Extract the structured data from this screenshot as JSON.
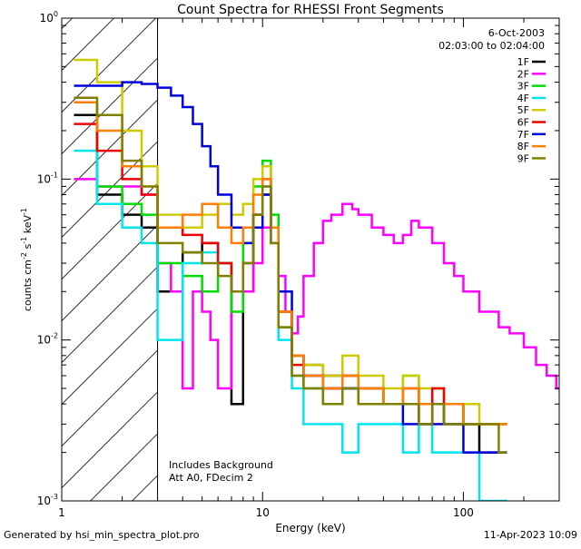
{
  "chart_data": {
    "type": "line",
    "title": "Count Spectra for RHESSI Front Segments",
    "date": "6-Oct-2003",
    "time_range": "02:03:00 to 02:04:00",
    "xlabel": "Energy (keV)",
    "ylabel_parts": [
      "counts cm",
      "-2",
      " s",
      "-1",
      " keV",
      "-1"
    ],
    "x_scale": "log",
    "y_scale": "log",
    "xlim": [
      1,
      300
    ],
    "ylim": [
      0.001,
      1
    ],
    "x_ticks": [
      {
        "value": 1,
        "label": "1"
      },
      {
        "value": 10,
        "label": "10"
      },
      {
        "value": 100,
        "label": "100"
      }
    ],
    "y_ticks": [
      {
        "value": 0.001,
        "base": "10",
        "exp": "-3"
      },
      {
        "value": 0.01,
        "base": "10",
        "exp": "-2"
      },
      {
        "value": 0.1,
        "base": "10",
        "exp": "-1"
      },
      {
        "value": 1,
        "base": "10",
        "exp": "0"
      }
    ],
    "hatched_region_keV": [
      1,
      3
    ],
    "annotations": [
      "Includes Background",
      "Att A0, FDecim 2"
    ],
    "series": [
      {
        "name": "1F",
        "color": "#000000",
        "x": [
          1.2,
          1.5,
          2,
          2.5,
          3,
          4,
          5,
          6,
          7,
          8,
          9,
          10,
          11,
          12,
          14,
          16,
          20,
          25,
          30,
          40,
          50,
          60,
          70,
          80,
          100,
          120,
          150
        ],
        "y": [
          0.25,
          0.08,
          0.06,
          0.05,
          0.02,
          0.035,
          0.04,
          0.03,
          0.004,
          0.02,
          0.06,
          0.08,
          0.05,
          0.015,
          0.008,
          0.007,
          0.006,
          0.005,
          0.004,
          0.004,
          0.004,
          0.003,
          0.004,
          0.003,
          0.003,
          0.002,
          0.002
        ]
      },
      {
        "name": "2F",
        "color": "#ff00ff",
        "x": [
          1.2,
          1.5,
          2,
          2.5,
          3,
          3.5,
          4,
          4.5,
          5,
          5.5,
          6,
          7,
          8,
          9,
          10,
          11,
          12,
          13,
          14,
          15,
          16,
          18,
          20,
          22,
          25,
          28,
          30,
          35,
          40,
          45,
          50,
          55,
          60,
          70,
          80,
          90,
          100,
          120,
          150,
          170,
          200,
          230,
          260,
          290
        ],
        "y": [
          0.1,
          0.09,
          0.09,
          0.08,
          0.03,
          0.02,
          0.005,
          0.02,
          0.015,
          0.01,
          0.005,
          0.02,
          0.02,
          0.03,
          0.05,
          0.04,
          0.025,
          0.015,
          0.011,
          0.014,
          0.025,
          0.04,
          0.055,
          0.06,
          0.07,
          0.065,
          0.06,
          0.05,
          0.045,
          0.04,
          0.045,
          0.055,
          0.05,
          0.04,
          0.03,
          0.025,
          0.02,
          0.015,
          0.012,
          0.011,
          0.009,
          0.007,
          0.006,
          0.005
        ]
      },
      {
        "name": "3F",
        "color": "#00dd00",
        "x": [
          1.2,
          1.5,
          2,
          2.5,
          3,
          4,
          5,
          6,
          7,
          8,
          9,
          10,
          11,
          12,
          14,
          16,
          20,
          25,
          30,
          40,
          50,
          60,
          70,
          80,
          100,
          120,
          150
        ],
        "y": [
          0.3,
          0.09,
          0.07,
          0.06,
          0.03,
          0.025,
          0.02,
          0.03,
          0.015,
          0.04,
          0.09,
          0.13,
          0.06,
          0.012,
          0.006,
          0.005,
          0.004,
          0.006,
          0.005,
          0.004,
          0.006,
          0.004,
          0.005,
          0.004,
          0.003,
          0.003,
          0.003
        ]
      },
      {
        "name": "4F",
        "color": "#00e5ee",
        "x": [
          1.2,
          1.5,
          2,
          2.5,
          3,
          4,
          5,
          6,
          7,
          8,
          9,
          10,
          11,
          12,
          14,
          16,
          20,
          25,
          30,
          40,
          50,
          60,
          70,
          80,
          100,
          120,
          150
        ],
        "y": [
          0.15,
          0.07,
          0.05,
          0.04,
          0.01,
          0.03,
          0.035,
          0.03,
          0.02,
          0.03,
          0.06,
          0.09,
          0.04,
          0.01,
          0.005,
          0.003,
          0.003,
          0.002,
          0.003,
          0.003,
          0.002,
          0.003,
          0.002,
          0.002,
          0.002,
          0.001,
          0.001
        ]
      },
      {
        "name": "5F",
        "color": "#cccc00",
        "x": [
          1.2,
          1.5,
          2,
          2.5,
          3,
          4,
          5,
          6,
          7,
          8,
          9,
          10,
          11,
          12,
          14,
          16,
          20,
          25,
          30,
          40,
          50,
          60,
          70,
          80,
          100,
          120,
          150
        ],
        "y": [
          0.55,
          0.4,
          0.2,
          0.12,
          0.06,
          0.05,
          0.06,
          0.07,
          0.06,
          0.07,
          0.1,
          0.12,
          0.05,
          0.015,
          0.008,
          0.007,
          0.006,
          0.008,
          0.006,
          0.005,
          0.006,
          0.005,
          0.005,
          0.004,
          0.004,
          0.003,
          0.003
        ]
      },
      {
        "name": "6F",
        "color": "#ee0000",
        "x": [
          1.2,
          1.5,
          2,
          2.5,
          3,
          4,
          5,
          6,
          7,
          8,
          9,
          10,
          11,
          12,
          14,
          16,
          20,
          25,
          30,
          40,
          50,
          60,
          70,
          80,
          100,
          120,
          150
        ],
        "y": [
          0.22,
          0.15,
          0.1,
          0.08,
          0.05,
          0.045,
          0.04,
          0.03,
          0.02,
          0.03,
          0.06,
          0.1,
          0.05,
          0.015,
          0.007,
          0.006,
          0.005,
          0.006,
          0.005,
          0.004,
          0.005,
          0.004,
          0.005,
          0.004,
          0.003,
          0.003,
          0.003
        ]
      },
      {
        "name": "7F",
        "color": "#0000dd",
        "x": [
          1.2,
          1.5,
          2,
          2.5,
          3,
          3.5,
          4,
          4.5,
          5,
          5.5,
          6,
          7,
          8,
          9,
          10,
          11,
          12,
          14,
          16,
          20,
          25,
          30,
          40,
          50,
          60,
          70,
          80,
          100,
          120,
          150
        ],
        "y": [
          0.38,
          0.38,
          0.4,
          0.39,
          0.37,
          0.33,
          0.28,
          0.22,
          0.16,
          0.12,
          0.08,
          0.05,
          0.04,
          0.05,
          0.08,
          0.05,
          0.02,
          0.008,
          0.006,
          0.005,
          0.005,
          0.004,
          0.004,
          0.003,
          0.003,
          0.003,
          0.003,
          0.002,
          0.002,
          0.002
        ]
      },
      {
        "name": "8F",
        "color": "#ff7f00",
        "x": [
          1.2,
          1.5,
          2,
          2.5,
          3,
          4,
          5,
          6,
          7,
          8,
          9,
          10,
          11,
          12,
          14,
          16,
          20,
          25,
          30,
          40,
          50,
          60,
          70,
          80,
          100,
          120,
          150
        ],
        "y": [
          0.3,
          0.2,
          0.12,
          0.09,
          0.05,
          0.06,
          0.07,
          0.05,
          0.04,
          0.05,
          0.08,
          0.1,
          0.05,
          0.015,
          0.008,
          0.006,
          0.005,
          0.006,
          0.005,
          0.004,
          0.005,
          0.004,
          0.004,
          0.004,
          0.003,
          0.003,
          0.003
        ]
      },
      {
        "name": "9F",
        "color": "#808000",
        "x": [
          1.2,
          1.5,
          2,
          2.5,
          3,
          4,
          5,
          6,
          7,
          8,
          9,
          10,
          11,
          12,
          14,
          16,
          20,
          25,
          30,
          40,
          50,
          60,
          70,
          80,
          100,
          120,
          150
        ],
        "y": [
          0.32,
          0.25,
          0.13,
          0.09,
          0.04,
          0.035,
          0.03,
          0.025,
          0.02,
          0.03,
          0.06,
          0.09,
          0.04,
          0.012,
          0.006,
          0.005,
          0.004,
          0.005,
          0.004,
          0.004,
          0.004,
          0.003,
          0.004,
          0.003,
          0.003,
          0.003,
          0.002
        ]
      }
    ]
  },
  "footer": {
    "left": "Generated by hsi_min_spectra_plot.pro",
    "right": "11-Apr-2023 10:09"
  }
}
